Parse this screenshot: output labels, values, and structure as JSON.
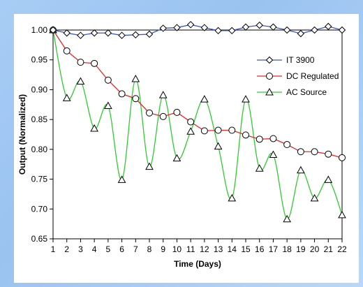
{
  "chart_data": {
    "type": "line",
    "xlabel": "Time (Days)",
    "ylabel": "Output (Normalized)",
    "x": [
      1,
      2,
      3,
      4,
      5,
      6,
      7,
      8,
      9,
      10,
      11,
      12,
      13,
      14,
      15,
      16,
      17,
      18,
      19,
      20,
      21,
      22
    ],
    "ylim": [
      0.65,
      1.0
    ],
    "xlim": [
      1,
      22
    ],
    "yticks": [
      "0.65",
      "0.70",
      "0.75",
      "0.80",
      "0.85",
      "0.90",
      "0.95",
      "1.00"
    ],
    "ytick_values": [
      0.65,
      0.7,
      0.75,
      0.8,
      0.85,
      0.9,
      0.95,
      1.0
    ],
    "xticks": [
      "1",
      "2",
      "3",
      "4",
      "5",
      "6",
      "7",
      "8",
      "9",
      "10",
      "11",
      "12",
      "13",
      "14",
      "15",
      "16",
      "17",
      "18",
      "19",
      "20",
      "21",
      "22"
    ],
    "grid": false,
    "legend_position": "top-right",
    "series": [
      {
        "name": "IT 3900",
        "color": "#3a56c8",
        "marker": "diamond",
        "smooth": false,
        "values": [
          1.0,
          0.995,
          0.991,
          0.995,
          0.995,
          0.991,
          0.992,
          0.993,
          1.003,
          1.004,
          1.009,
          1.004,
          0.999,
          0.999,
          1.005,
          1.008,
          1.005,
          1.0,
          0.994,
          1.0,
          1.006,
          1.0
        ]
      },
      {
        "name": "DC Regulated",
        "color": "#e8272b",
        "marker": "circle",
        "smooth": false,
        "values": [
          1.0,
          0.965,
          0.946,
          0.944,
          0.916,
          0.893,
          0.885,
          0.861,
          0.855,
          0.862,
          0.846,
          0.831,
          0.832,
          0.832,
          0.824,
          0.817,
          0.818,
          0.808,
          0.796,
          0.796,
          0.792,
          0.786
        ]
      },
      {
        "name": "AC Source",
        "color": "#2ecc2e",
        "marker": "triangle",
        "smooth": true,
        "values": [
          1.0,
          0.886,
          0.914,
          0.835,
          0.873,
          0.749,
          0.918,
          0.771,
          0.891,
          0.785,
          0.83,
          0.884,
          0.805,
          0.718,
          0.884,
          0.768,
          0.791,
          0.683,
          0.765,
          0.718,
          0.749,
          0.69
        ]
      }
    ]
  }
}
